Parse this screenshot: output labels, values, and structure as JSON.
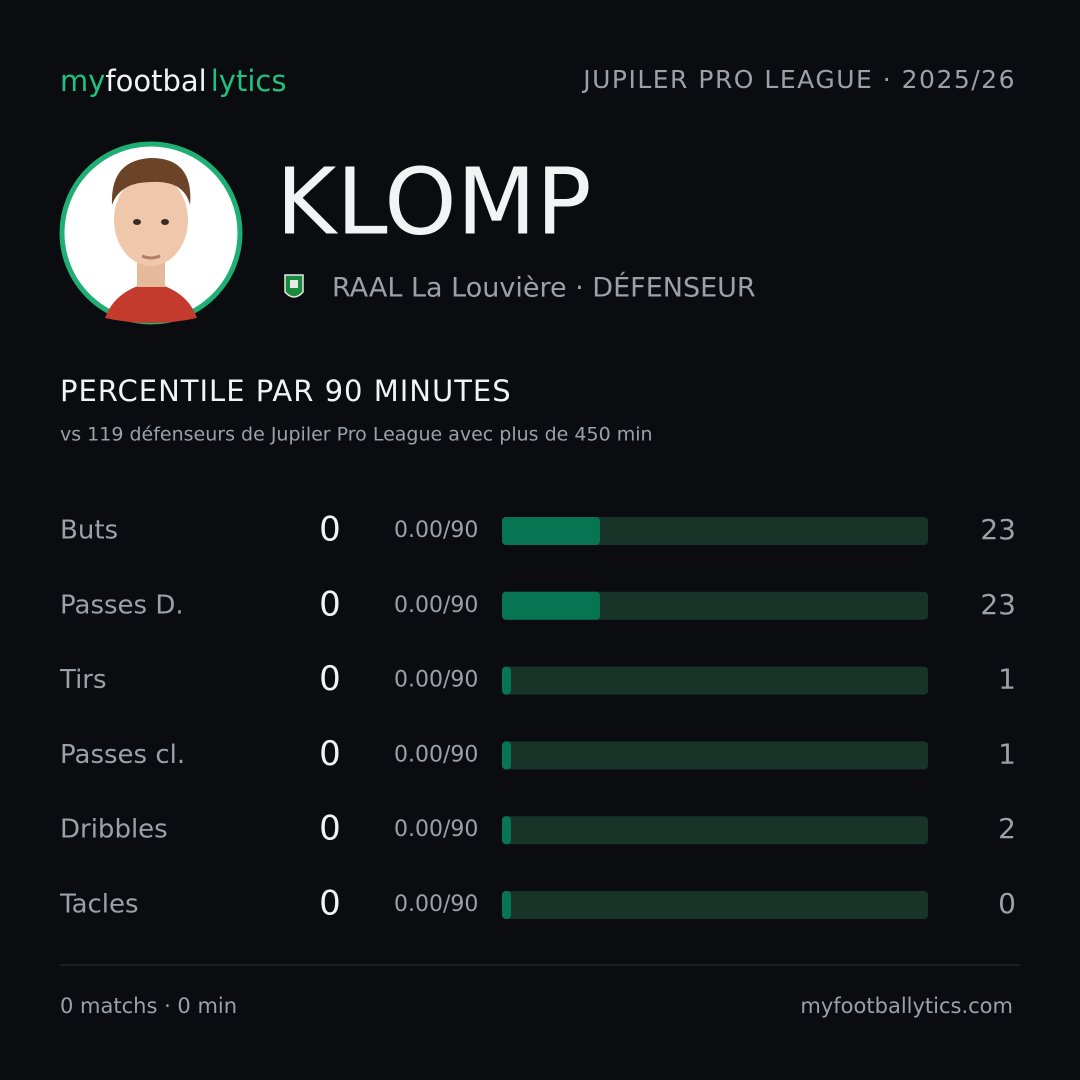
{
  "header": {
    "logo": [
      "my",
      "footbal",
      "lytics"
    ],
    "league": "JUPILER PRO LEAGUE · 2025/26"
  },
  "player": {
    "name": "KLOMP",
    "club_line": "RAAL La Louvière · DÉFENSEUR"
  },
  "section": {
    "title": "PERCENTILE PAR 90 MINUTES",
    "subtitle": "vs 119 défenseurs de Jupiler Pro League avec plus de 450 min"
  },
  "stats": {
    "percentile_max": 100,
    "rows": [
      {
        "label": "Buts",
        "value": 0,
        "per90": "0.00/90",
        "percentile": 23
      },
      {
        "label": "Passes D.",
        "value": 0,
        "per90": "0.00/90",
        "percentile": 23
      },
      {
        "label": "Tirs",
        "value": 0,
        "per90": "0.00/90",
        "percentile": 1
      },
      {
        "label": "Passes cl.",
        "value": 0,
        "per90": "0.00/90",
        "percentile": 1
      },
      {
        "label": "Dribbles",
        "value": 0,
        "per90": "0.00/90",
        "percentile": 2
      },
      {
        "label": "Tacles",
        "value": 0,
        "per90": "0.00/90",
        "percentile": 0
      }
    ]
  },
  "footer": {
    "summary": "0 matchs · 0 min",
    "site": "myfootballytics.com"
  }
}
